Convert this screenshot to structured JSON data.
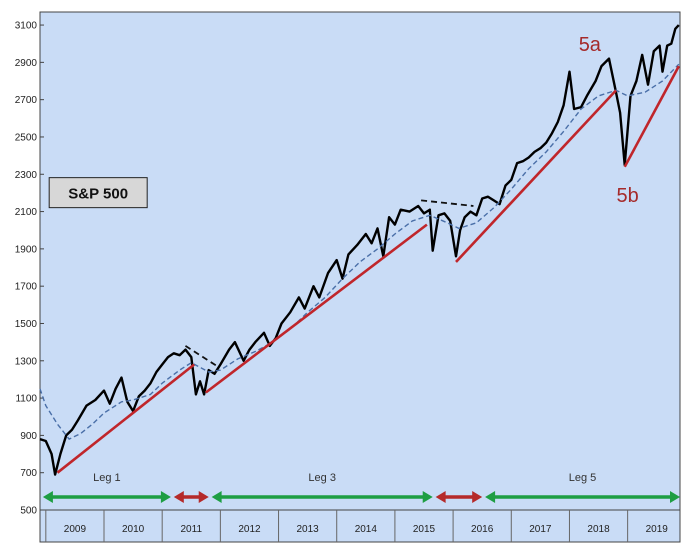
{
  "chart_data": {
    "type": "line",
    "title": "S&P 500",
    "y_ticks": [
      500,
      700,
      900,
      1100,
      1300,
      1500,
      1700,
      1900,
      2100,
      2300,
      2500,
      2700,
      2900,
      3100
    ],
    "ylim": [
      500,
      3170
    ],
    "xlim": [
      2008.9,
      2019.9
    ],
    "x_labels": [
      "2009",
      "2010",
      "2011",
      "2012",
      "2013",
      "2014",
      "2015",
      "2016",
      "2017",
      "2018",
      "2019"
    ],
    "grid": false,
    "background": "#c9dcf6",
    "series": [
      {
        "role": "index",
        "color": "#000000",
        "points": [
          [
            2008.9,
            880
          ],
          [
            2009.0,
            870
          ],
          [
            2009.1,
            800
          ],
          [
            2009.16,
            690
          ],
          [
            2009.25,
            800
          ],
          [
            2009.35,
            900
          ],
          [
            2009.45,
            930
          ],
          [
            2009.55,
            980
          ],
          [
            2009.7,
            1060
          ],
          [
            2009.85,
            1090
          ],
          [
            2010.0,
            1140
          ],
          [
            2010.1,
            1070
          ],
          [
            2010.2,
            1150
          ],
          [
            2010.3,
            1210
          ],
          [
            2010.4,
            1080
          ],
          [
            2010.5,
            1030
          ],
          [
            2010.6,
            1110
          ],
          [
            2010.7,
            1140
          ],
          [
            2010.8,
            1180
          ],
          [
            2010.9,
            1240
          ],
          [
            2011.0,
            1280
          ],
          [
            2011.1,
            1320
          ],
          [
            2011.2,
            1340
          ],
          [
            2011.3,
            1330
          ],
          [
            2011.4,
            1360
          ],
          [
            2011.5,
            1320
          ],
          [
            2011.58,
            1120
          ],
          [
            2011.65,
            1190
          ],
          [
            2011.72,
            1120
          ],
          [
            2011.8,
            1250
          ],
          [
            2011.9,
            1230
          ],
          [
            2012.0,
            1280
          ],
          [
            2012.15,
            1360
          ],
          [
            2012.25,
            1400
          ],
          [
            2012.4,
            1300
          ],
          [
            2012.5,
            1360
          ],
          [
            2012.6,
            1400
          ],
          [
            2012.75,
            1450
          ],
          [
            2012.85,
            1380
          ],
          [
            2012.95,
            1420
          ],
          [
            2013.05,
            1500
          ],
          [
            2013.2,
            1560
          ],
          [
            2013.35,
            1640
          ],
          [
            2013.45,
            1580
          ],
          [
            2013.6,
            1700
          ],
          [
            2013.7,
            1640
          ],
          [
            2013.85,
            1770
          ],
          [
            2014.0,
            1840
          ],
          [
            2014.1,
            1740
          ],
          [
            2014.2,
            1870
          ],
          [
            2014.35,
            1920
          ],
          [
            2014.5,
            1980
          ],
          [
            2014.6,
            1930
          ],
          [
            2014.7,
            2010
          ],
          [
            2014.8,
            1860
          ],
          [
            2014.9,
            2070
          ],
          [
            2015.0,
            2030
          ],
          [
            2015.1,
            2110
          ],
          [
            2015.25,
            2100
          ],
          [
            2015.4,
            2130
          ],
          [
            2015.5,
            2090
          ],
          [
            2015.6,
            2110
          ],
          [
            2015.65,
            1890
          ],
          [
            2015.75,
            2080
          ],
          [
            2015.85,
            2090
          ],
          [
            2015.95,
            2050
          ],
          [
            2016.05,
            1860
          ],
          [
            2016.12,
            2000
          ],
          [
            2016.2,
            2070
          ],
          [
            2016.3,
            2100
          ],
          [
            2016.4,
            2080
          ],
          [
            2016.5,
            2170
          ],
          [
            2016.6,
            2180
          ],
          [
            2016.7,
            2160
          ],
          [
            2016.8,
            2140
          ],
          [
            2016.9,
            2240
          ],
          [
            2017.0,
            2270
          ],
          [
            2017.1,
            2360
          ],
          [
            2017.2,
            2370
          ],
          [
            2017.3,
            2390
          ],
          [
            2017.4,
            2420
          ],
          [
            2017.5,
            2440
          ],
          [
            2017.6,
            2470
          ],
          [
            2017.7,
            2520
          ],
          [
            2017.8,
            2580
          ],
          [
            2017.9,
            2670
          ],
          [
            2018.0,
            2850
          ],
          [
            2018.08,
            2650
          ],
          [
            2018.2,
            2660
          ],
          [
            2018.3,
            2720
          ],
          [
            2018.45,
            2800
          ],
          [
            2018.55,
            2880
          ],
          [
            2018.68,
            2920
          ],
          [
            2018.8,
            2740
          ],
          [
            2018.87,
            2630
          ],
          [
            2018.95,
            2350
          ],
          [
            2019.05,
            2720
          ],
          [
            2019.15,
            2800
          ],
          [
            2019.25,
            2940
          ],
          [
            2019.35,
            2780
          ],
          [
            2019.45,
            2960
          ],
          [
            2019.55,
            2990
          ],
          [
            2019.6,
            2850
          ],
          [
            2019.68,
            2990
          ],
          [
            2019.75,
            3000
          ],
          [
            2019.82,
            3080
          ],
          [
            2019.88,
            3100
          ]
        ]
      },
      {
        "role": "moving-average",
        "color": "#4a6fa8",
        "points": [
          [
            2008.9,
            1150
          ],
          [
            2009.0,
            1060
          ],
          [
            2009.2,
            960
          ],
          [
            2009.4,
            880
          ],
          [
            2009.6,
            910
          ],
          [
            2009.8,
            960
          ],
          [
            2010.0,
            1020
          ],
          [
            2010.3,
            1080
          ],
          [
            2010.5,
            1090
          ],
          [
            2010.8,
            1120
          ],
          [
            2011.0,
            1180
          ],
          [
            2011.3,
            1250
          ],
          [
            2011.5,
            1290
          ],
          [
            2011.8,
            1240
          ],
          [
            2012.0,
            1250
          ],
          [
            2012.3,
            1310
          ],
          [
            2012.6,
            1350
          ],
          [
            2012.9,
            1400
          ],
          [
            2013.2,
            1470
          ],
          [
            2013.5,
            1560
          ],
          [
            2013.8,
            1640
          ],
          [
            2014.1,
            1740
          ],
          [
            2014.4,
            1830
          ],
          [
            2014.7,
            1900
          ],
          [
            2015.0,
            1980
          ],
          [
            2015.3,
            2050
          ],
          [
            2015.6,
            2080
          ],
          [
            2015.9,
            2040
          ],
          [
            2016.1,
            2010
          ],
          [
            2016.4,
            2040
          ],
          [
            2016.7,
            2120
          ],
          [
            2017.0,
            2220
          ],
          [
            2017.3,
            2330
          ],
          [
            2017.6,
            2420
          ],
          [
            2017.9,
            2530
          ],
          [
            2018.2,
            2650
          ],
          [
            2018.5,
            2720
          ],
          [
            2018.8,
            2750
          ],
          [
            2019.0,
            2720
          ],
          [
            2019.3,
            2740
          ],
          [
            2019.6,
            2800
          ],
          [
            2019.88,
            2890
          ]
        ]
      },
      {
        "role": "trendline",
        "color": "#c0262b",
        "segments": [
          [
            [
              2009.2,
              700
            ],
            [
              2011.55,
              1280
            ]
          ],
          [
            [
              2011.75,
              1130
            ],
            [
              2015.55,
              2030
            ]
          ],
          [
            [
              2016.05,
              1830
            ],
            [
              2018.8,
              2750
            ]
          ],
          [
            [
              2018.95,
              2340
            ],
            [
              2019.88,
              2880
            ]
          ]
        ]
      },
      {
        "role": "resistance",
        "color": "#111111",
        "style": "dashed",
        "segments": [
          [
            [
              2011.4,
              1380
            ],
            [
              2011.95,
              1270
            ]
          ],
          [
            [
              2015.45,
              2160
            ],
            [
              2016.35,
              2130
            ]
          ]
        ]
      }
    ],
    "bands": [
      {
        "label": "Leg 1",
        "start": 2008.95,
        "end": 2011.15,
        "color": "#1e9e43"
      },
      {
        "label": "",
        "start": 2011.2,
        "end": 2011.8,
        "color": "#b52a2a"
      },
      {
        "label": "Leg 3",
        "start": 2011.85,
        "end": 2015.65,
        "color": "#1e9e43"
      },
      {
        "label": "",
        "start": 2015.7,
        "end": 2016.5,
        "color": "#b52a2a"
      },
      {
        "label": "Leg 5",
        "start": 2016.55,
        "end": 2019.9,
        "color": "#1e9e43"
      }
    ],
    "annotations": [
      {
        "text": "5a",
        "x": 2018.35,
        "y": 2960
      },
      {
        "text": "5b",
        "x": 2019.0,
        "y": 2150
      }
    ],
    "label_box": {
      "text": "S&P 500",
      "x": 2009.9,
      "y": 2180
    }
  }
}
